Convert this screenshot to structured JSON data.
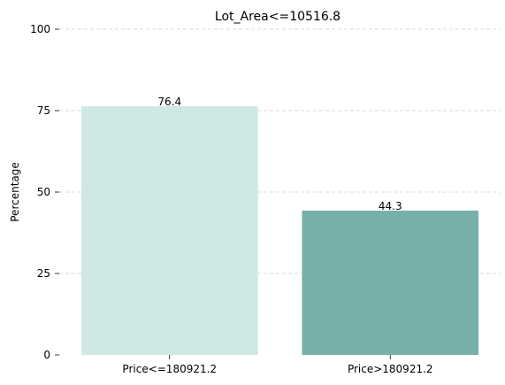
{
  "chart_data": {
    "type": "bar",
    "title": "Lot_Area<=10516.8",
    "xlabel": "",
    "ylabel": "Percentage",
    "categories": [
      "Price<=180921.2",
      "Price>180921.2"
    ],
    "values": [
      76.4,
      44.3
    ],
    "value_labels": [
      "76.4",
      "44.3"
    ],
    "ylim": [
      0,
      100
    ],
    "yticks": [
      0,
      25,
      50,
      75,
      100
    ],
    "ytick_labels": [
      "0",
      "25",
      "50",
      "75",
      "100"
    ],
    "grid": "horizontal dashed",
    "legend": "none",
    "colors": [
      "#cfe8e4",
      "#78b0a9"
    ],
    "grid_color": "#cccccc"
  }
}
